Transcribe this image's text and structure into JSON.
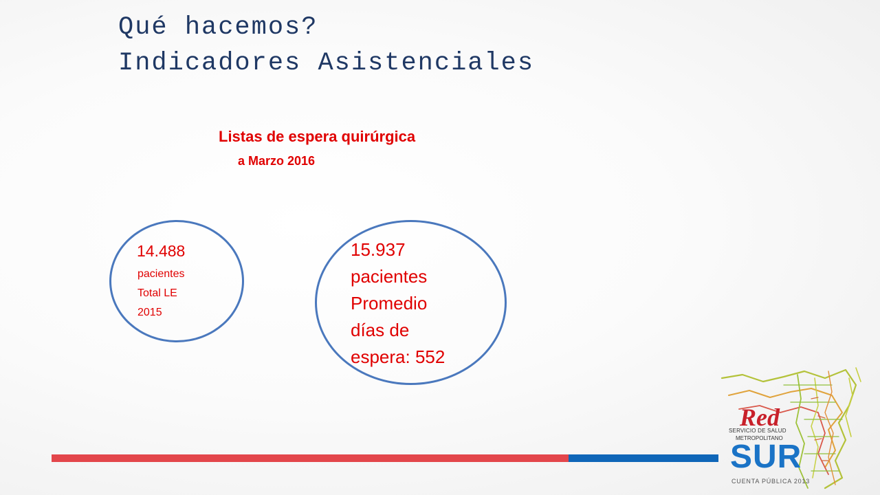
{
  "title": {
    "line1": "Qué hacemos?",
    "line2": "Indicadores Asistenciales"
  },
  "subtitle": {
    "line1": "Listas de espera quirúrgica",
    "line2": "a Marzo 2016"
  },
  "oval_2015": {
    "number": "14.488",
    "line1": "pacientes",
    "line2": "Total LE",
    "line3": "2015"
  },
  "oval_2016": {
    "number": "15.937",
    "line1": "pacientes",
    "line2": "Promedio",
    "line3": "días de",
    "line4": "espera: 552"
  },
  "logo": {
    "word": "Red",
    "service_line1": "SERVICIO DE SALUD",
    "service_line2": "METROPOLITANO",
    "name": "SUR",
    "tagline": "CUENTA PÚBLICA 2013"
  },
  "colors": {
    "title": "#1f3864",
    "accent_red": "#e00000",
    "oval_border": "#4a78bd",
    "bar_red": "#e3464b",
    "bar_blue": "#0f66b8",
    "logo_blue": "#1a73c6"
  }
}
